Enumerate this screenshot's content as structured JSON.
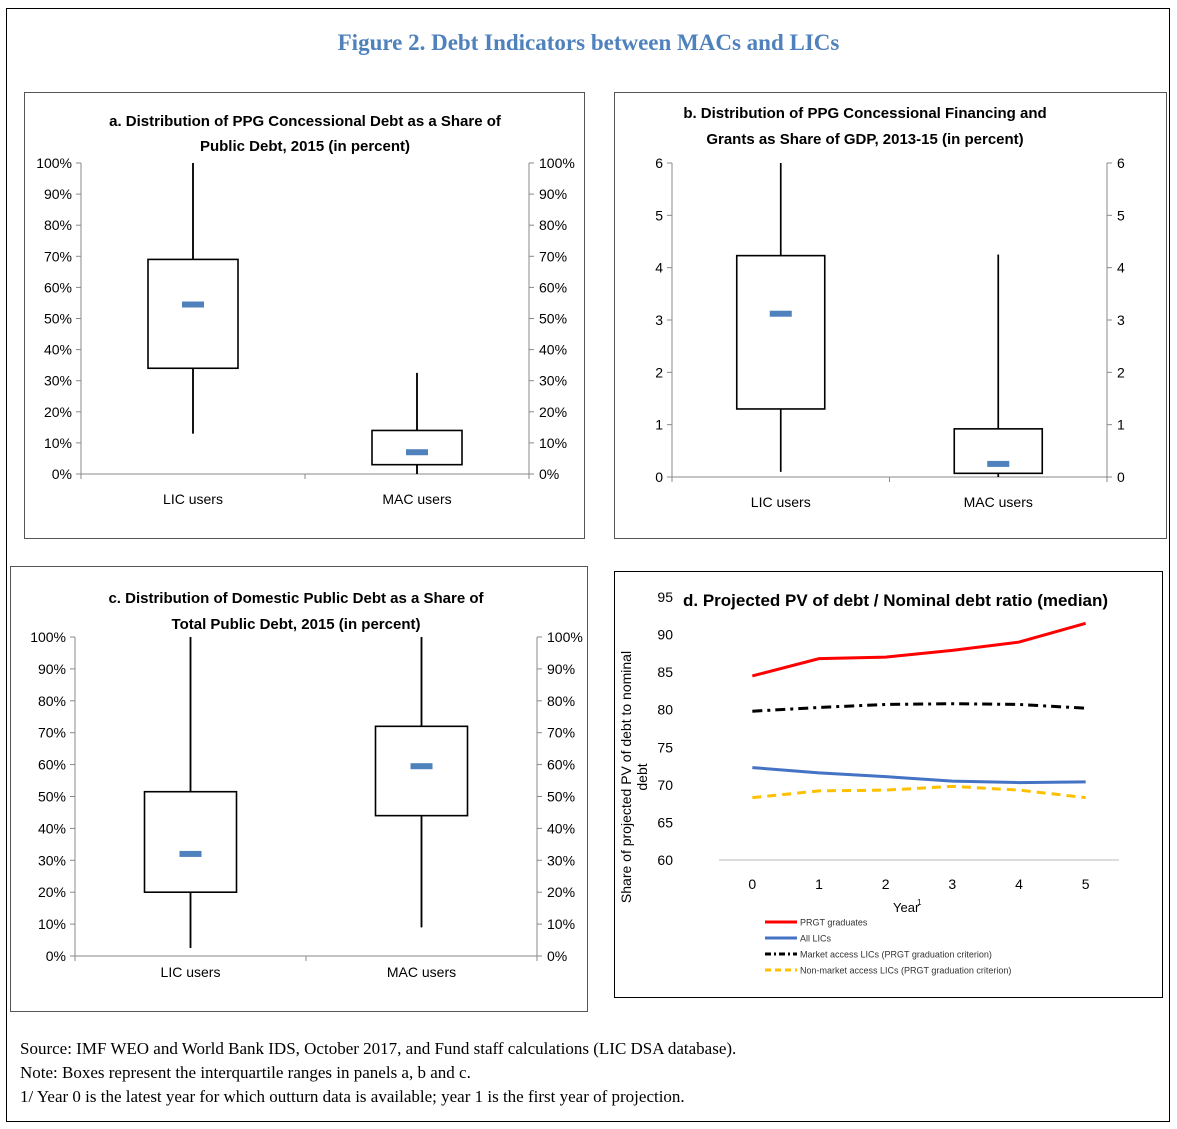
{
  "figure_title": "Figure 2. Debt Indicators between MACs and LICs",
  "notes": {
    "source": "Source: IMF WEO and World Bank IDS, October 2017, and Fund staff calculations (LIC DSA database).",
    "note": "Note: Boxes represent the interquartile ranges in panels a, b and c.",
    "footnote": "1/ Year 0 is the latest year for which outturn data is available; year 1 is the first year of projection."
  },
  "chart_data": [
    {
      "id": "a",
      "type": "box",
      "title_lines": [
        "a. Distribution of PPG Concessional  Debt as a Share of",
        "Public Debt, 2015 (in percent)"
      ],
      "categories": [
        "LIC users",
        "MAC users"
      ],
      "ylim": [
        0,
        100
      ],
      "yticks": [
        0,
        10,
        20,
        30,
        40,
        50,
        60,
        70,
        80,
        90,
        100
      ],
      "tick_suffix": "%",
      "boxes": [
        {
          "min": 13,
          "q1": 34,
          "median": 54.5,
          "q3": 69,
          "max": 100
        },
        {
          "min": 0,
          "q1": 3,
          "median": 7,
          "q3": 14,
          "max": 32.5
        }
      ],
      "median_color": "#4f81bd"
    },
    {
      "id": "b",
      "type": "box",
      "title_lines": [
        "b. Distribution of PPG Concessional Financing and",
        "Grants as Share of GDP, 2013-15 (in percent)"
      ],
      "categories": [
        "LIC users",
        "MAC users"
      ],
      "ylim": [
        0,
        6
      ],
      "yticks": [
        0,
        1,
        2,
        3,
        4,
        5,
        6
      ],
      "tick_suffix": "",
      "boxes": [
        {
          "min": 0.1,
          "q1": 1.3,
          "median": 3.12,
          "q3": 4.23,
          "max": 6
        },
        {
          "min": 0,
          "q1": 0.07,
          "median": 0.25,
          "q3": 0.92,
          "max": 4.25
        }
      ],
      "median_color": "#4f81bd"
    },
    {
      "id": "c",
      "type": "box",
      "title_lines": [
        "c. Distribution of Domestic Public Debt as a Share of",
        "Total Public Debt, 2015 (in percent)"
      ],
      "categories": [
        "LIC users",
        "MAC users"
      ],
      "ylim": [
        0,
        100
      ],
      "yticks": [
        0,
        10,
        20,
        30,
        40,
        50,
        60,
        70,
        80,
        90,
        100
      ],
      "tick_suffix": "%",
      "boxes": [
        {
          "min": 2.5,
          "q1": 20,
          "median": 32,
          "q3": 51.5,
          "max": 100
        },
        {
          "min": 9,
          "q1": 44,
          "median": 59.5,
          "q3": 72,
          "max": 100
        }
      ],
      "median_color": "#4f81bd"
    },
    {
      "id": "d",
      "type": "line",
      "title": "d. Projected PV of debt / Nominal debt ratio (median)",
      "ylabel_lines": [
        "Share of projected PV of debt to nominal",
        "debt"
      ],
      "xlabel": "Year",
      "xlabel_sup": "1",
      "x": [
        0,
        1,
        2,
        3,
        4,
        5
      ],
      "ylim": [
        60,
        95
      ],
      "yticks": [
        60,
        65,
        70,
        75,
        80,
        85,
        90,
        95
      ],
      "series": [
        {
          "name": "PRGT graduates",
          "values": [
            84.5,
            86.8,
            87.0,
            87.9,
            89.0,
            91.5
          ],
          "color": "#ff0000",
          "dash": "solid"
        },
        {
          "name": "All LICs",
          "values": [
            72.3,
            71.6,
            71.1,
            70.5,
            70.3,
            70.4
          ],
          "color": "#4472c4",
          "dash": "solid"
        },
        {
          "name": "Market access LICs (PRGT graduation criterion)",
          "values": [
            79.8,
            80.3,
            80.7,
            80.8,
            80.7,
            80.2
          ],
          "color": "#000000",
          "dash": "dashdot"
        },
        {
          "name": "Non-market access LICs (PRGT graduation criterion)",
          "values": [
            68.3,
            69.2,
            69.3,
            69.8,
            69.3,
            68.3
          ],
          "color": "#ffc000",
          "dash": "dash"
        }
      ]
    }
  ]
}
